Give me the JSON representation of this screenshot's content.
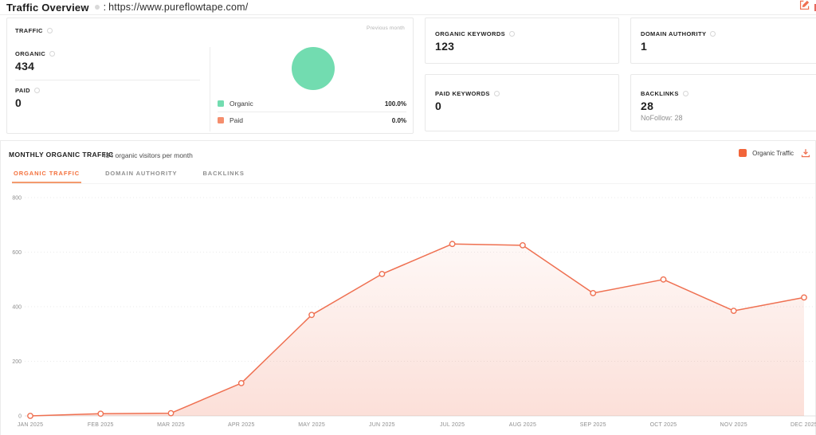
{
  "header": {
    "title": "Traffic Overview",
    "separator": ":",
    "url": "https://www.pureflowtape.com/"
  },
  "cards": {
    "traffic": {
      "label": "TRAFFIC",
      "previous_month": "Previous month",
      "organic": {
        "label": "ORGANIC",
        "value": "434"
      },
      "paid": {
        "label": "PAID",
        "value": "0"
      }
    },
    "organic_keywords": {
      "label": "ORGANIC KEYWORDS",
      "value": "123"
    },
    "domain_authority": {
      "label": "DOMAIN AUTHORITY",
      "value": "1"
    },
    "paid_keywords": {
      "label": "PAID KEYWORDS",
      "value": "0"
    },
    "backlinks": {
      "label": "BACKLINKS",
      "value": "28",
      "nofollow": "NoFollow: 28"
    }
  },
  "monthly": {
    "title": "MONTHLY ORGANIC TRAFFIC",
    "subtitle": "434 organic visitors per month",
    "legend_label": "Organic Traffic",
    "tabs": [
      {
        "label": "ORGANIC TRAFFIC",
        "active": true
      },
      {
        "label": "DOMAIN AUTHORITY",
        "active": false
      },
      {
        "label": "BACKLINKS",
        "active": false
      }
    ]
  },
  "colors": {
    "accent_orange": "#f2653a",
    "line_coral": "#ef7051",
    "organic_green": "#72dcb0",
    "paid_salmon": "#f58e6d"
  },
  "chart_data": [
    {
      "type": "pie",
      "note": "Previous month",
      "labels": [
        "Organic",
        "Paid"
      ],
      "values": [
        100.0,
        0.0
      ],
      "pct_labels": [
        "100.0%",
        "0.0%"
      ],
      "colors": [
        "#72dcb0",
        "#f58e6d"
      ],
      "legend_position": "bottom"
    },
    {
      "type": "area",
      "title": "Monthly Organic Traffic",
      "x": [
        "JAN 2025",
        "FEB 2025",
        "MAR 2025",
        "APR 2025",
        "MAY 2025",
        "JUN 2025",
        "JUL 2025",
        "AUG 2025",
        "SEP 2025",
        "OCT 2025",
        "NOV 2025",
        "DEC 2025"
      ],
      "series": [
        {
          "name": "Organic Traffic",
          "values": [
            0,
            8,
            10,
            120,
            370,
            520,
            630,
            625,
            450,
            500,
            385,
            434
          ]
        }
      ],
      "ylim": [
        0,
        800
      ],
      "yticks": [
        0,
        200,
        400,
        600,
        800
      ],
      "grid": "horizontal-dotted",
      "line_color": "#ef7051",
      "legend_color": "#f2653a",
      "legend_position": "top-right"
    }
  ]
}
